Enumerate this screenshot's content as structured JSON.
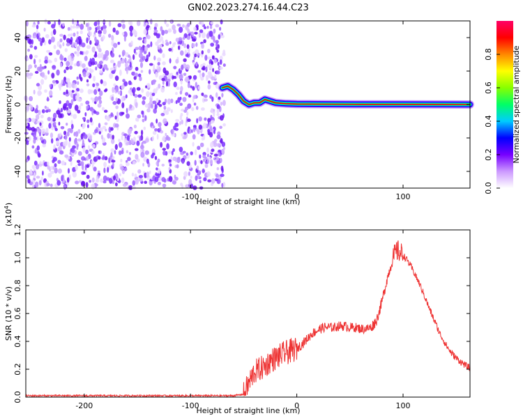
{
  "title": "GN02.2023.274.16.44.C23",
  "chart_data": [
    {
      "type": "heatmap",
      "xlabel": "Height of straight line (km)",
      "ylabel": "Frequency (Hz)",
      "xlim": [
        -255,
        163
      ],
      "ylim": [
        -50,
        50
      ],
      "xticks": [
        -200,
        -100,
        0,
        100
      ],
      "yticks": [
        -40,
        -20,
        0,
        20,
        40
      ],
      "noise_region_x": [
        -255,
        -68
      ],
      "signal_track": {
        "x": [
          -70,
          -65,
          -60,
          -55,
          -50,
          -45,
          -40,
          -35,
          -30,
          -25,
          -20,
          -10,
          0,
          20,
          60,
          100,
          163
        ],
        "y": [
          10,
          11,
          9,
          6,
          2,
          0,
          1,
          1,
          3,
          2,
          1,
          0.5,
          0.3,
          0.2,
          0.1,
          0.1,
          0
        ]
      },
      "colorbar": {
        "label": "Normalized spectral amplitude",
        "range": [
          0,
          1
        ],
        "ticks": [
          "0.0",
          "0.2",
          "0.4",
          "0.6",
          "0.8"
        ],
        "colors": [
          "#ffffff",
          "#cc99ff",
          "#7700ff",
          "#0000ff",
          "#00ccff",
          "#00ff66",
          "#88ff00",
          "#ffff00",
          "#ff8800",
          "#ff0000",
          "#ff0066"
        ]
      },
      "grid": false
    },
    {
      "type": "line",
      "xlabel": "Height of straight line (km)",
      "ylabel": "SNR (10 * v/v)",
      "scale_label": "(x10",
      "scale_exp": "4",
      "xlim": [
        -255,
        163
      ],
      "ylim": [
        0,
        1.2
      ],
      "xticks": [
        -200,
        -100,
        0,
        100
      ],
      "yticks": [
        0.0,
        0.2,
        0.4,
        0.6,
        0.8,
        1.0,
        1.2
      ],
      "ytick_labels": [
        "0.0",
        "0.2",
        "0.4",
        "0.6",
        "0.8",
        "1.0",
        "1.2"
      ],
      "line_color": "#ee3333",
      "series": [
        {
          "x": [
            -255,
            -200,
            -150,
            -100,
            -60,
            -50,
            -45,
            -40,
            -35,
            -30,
            -25,
            -20,
            -15,
            -10,
            -5,
            0,
            5,
            10,
            15,
            20,
            25,
            30,
            35,
            40,
            45,
            50,
            55,
            60,
            65,
            70,
            75,
            80,
            85,
            90,
            93,
            95,
            100,
            105,
            110,
            115,
            120,
            125,
            130,
            135,
            140,
            145,
            150,
            155,
            160,
            163
          ],
          "y": [
            0.01,
            0.01,
            0.01,
            0.01,
            0.01,
            0.02,
            0.1,
            0.18,
            0.2,
            0.22,
            0.26,
            0.28,
            0.3,
            0.32,
            0.33,
            0.35,
            0.38,
            0.42,
            0.46,
            0.48,
            0.5,
            0.5,
            0.5,
            0.51,
            0.51,
            0.5,
            0.5,
            0.49,
            0.49,
            0.5,
            0.55,
            0.68,
            0.85,
            0.98,
            1.04,
            1.05,
            1.02,
            0.97,
            0.9,
            0.82,
            0.73,
            0.63,
            0.54,
            0.45,
            0.38,
            0.32,
            0.28,
            0.25,
            0.22,
            0.21
          ]
        }
      ],
      "grid": false
    }
  ]
}
